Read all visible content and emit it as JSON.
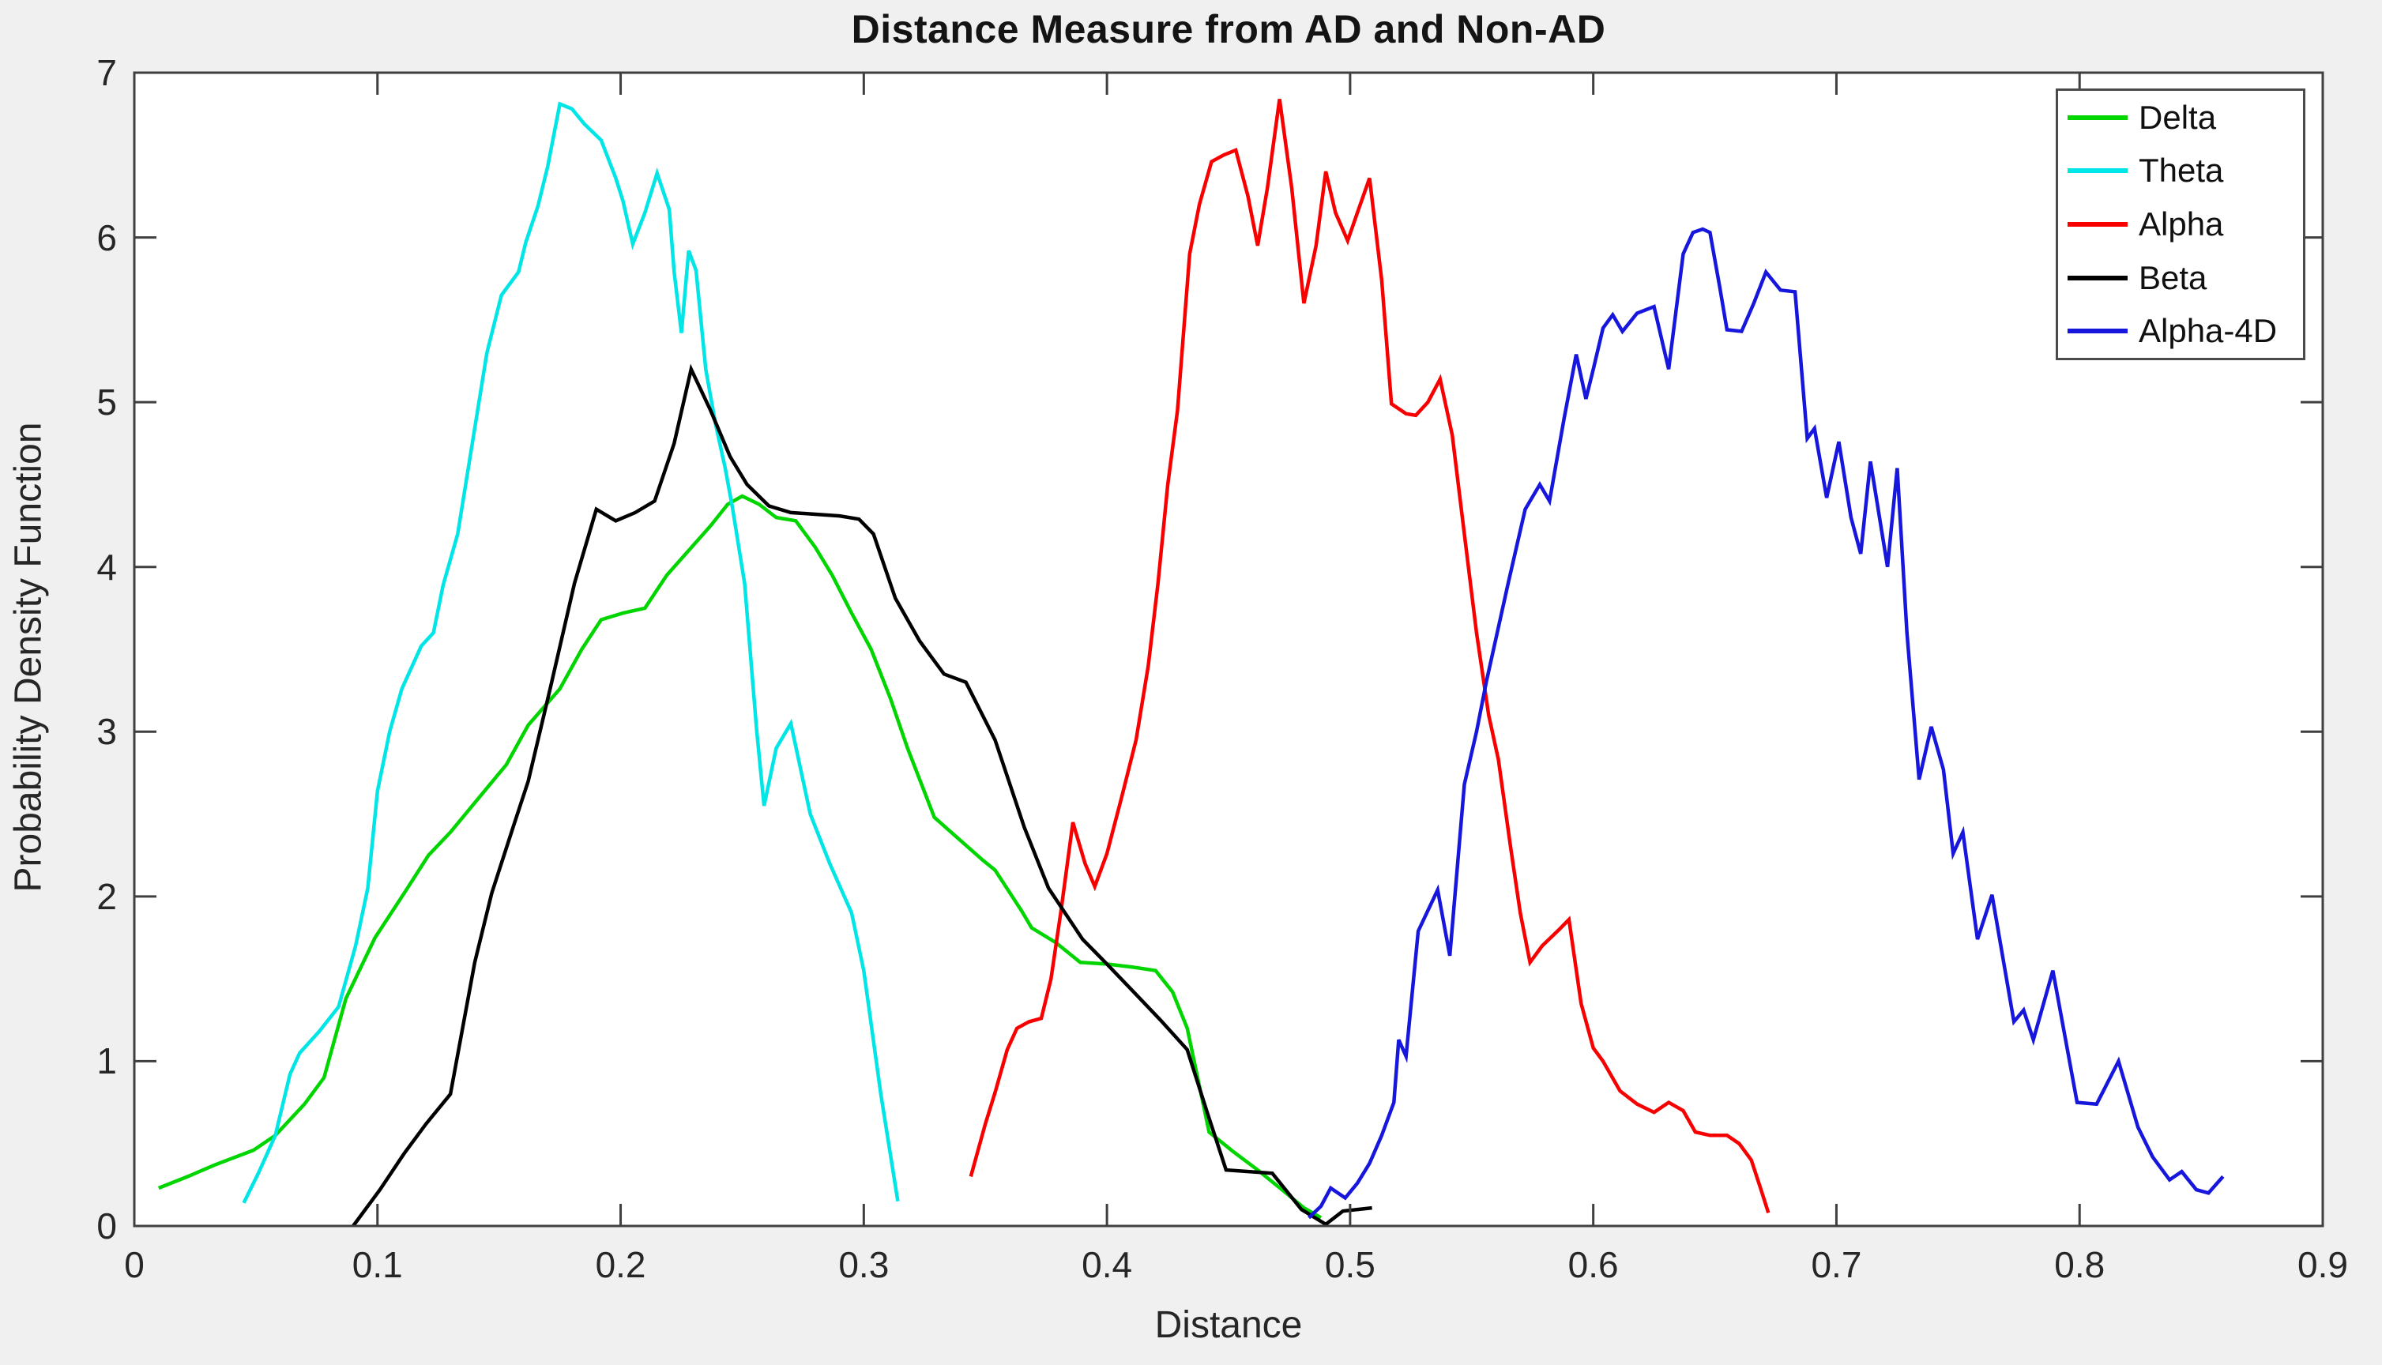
{
  "figure": {
    "background_color": "#f0f0f0",
    "plot_background_color": "#ffffff",
    "axis_color": "#3f3f3f",
    "tick_label_color": "#262626"
  },
  "chart_data": {
    "type": "line",
    "title": "Distance Measure from AD and Non-AD",
    "xlabel": "Distance",
    "ylabel": "Probability Density Function",
    "xlim": [
      0,
      0.9
    ],
    "ylim": [
      0,
      7
    ],
    "grid": false,
    "legend_position": "top-right",
    "xticks": {
      "values": [
        0,
        0.1,
        0.2,
        0.3,
        0.4,
        0.5,
        0.6,
        0.7,
        0.8,
        0.9
      ],
      "labels": [
        "0",
        "0.1",
        "0.2",
        "0.3",
        "0.4",
        "0.5",
        "0.6",
        "0.7",
        "0.8",
        "0.9"
      ]
    },
    "yticks": {
      "values": [
        0,
        1,
        2,
        3,
        4,
        5,
        6,
        7
      ],
      "labels": [
        "0",
        "1",
        "2",
        "3",
        "4",
        "5",
        "6",
        "7"
      ]
    },
    "series": [
      {
        "name": "Delta",
        "color": "#00d500",
        "points": [
          [
            0.01,
            0.23
          ],
          [
            0.022,
            0.3
          ],
          [
            0.033,
            0.37
          ],
          [
            0.049,
            0.46
          ],
          [
            0.058,
            0.55
          ],
          [
            0.07,
            0.74
          ],
          [
            0.078,
            0.9
          ],
          [
            0.087,
            1.38
          ],
          [
            0.099,
            1.75
          ],
          [
            0.111,
            2.02
          ],
          [
            0.121,
            2.25
          ],
          [
            0.13,
            2.39
          ],
          [
            0.144,
            2.64
          ],
          [
            0.153,
            2.8
          ],
          [
            0.162,
            3.04
          ],
          [
            0.175,
            3.26
          ],
          [
            0.184,
            3.5
          ],
          [
            0.192,
            3.68
          ],
          [
            0.201,
            3.72
          ],
          [
            0.21,
            3.75
          ],
          [
            0.219,
            3.95
          ],
          [
            0.228,
            4.1
          ],
          [
            0.237,
            4.25
          ],
          [
            0.244,
            4.38
          ],
          [
            0.25,
            4.43
          ],
          [
            0.257,
            4.38
          ],
          [
            0.264,
            4.3
          ],
          [
            0.272,
            4.28
          ],
          [
            0.28,
            4.12
          ],
          [
            0.287,
            3.95
          ],
          [
            0.295,
            3.72
          ],
          [
            0.303,
            3.5
          ],
          [
            0.311,
            3.2
          ],
          [
            0.318,
            2.9
          ],
          [
            0.329,
            2.48
          ],
          [
            0.339,
            2.35
          ],
          [
            0.349,
            2.22
          ],
          [
            0.354,
            2.16
          ],
          [
            0.365,
            1.91
          ],
          [
            0.369,
            1.81
          ],
          [
            0.379,
            1.72
          ],
          [
            0.389,
            1.6
          ],
          [
            0.4,
            1.59
          ],
          [
            0.411,
            1.57
          ],
          [
            0.42,
            1.55
          ],
          [
            0.427,
            1.42
          ],
          [
            0.433,
            1.2
          ],
          [
            0.438,
            0.85
          ],
          [
            0.442,
            0.57
          ],
          [
            0.452,
            0.45
          ],
          [
            0.462,
            0.34
          ],
          [
            0.472,
            0.22
          ],
          [
            0.481,
            0.11
          ],
          [
            0.488,
            0.05
          ]
        ]
      },
      {
        "name": "Theta",
        "color": "#00e5e5",
        "points": [
          [
            0.045,
            0.14
          ],
          [
            0.051,
            0.32
          ],
          [
            0.058,
            0.55
          ],
          [
            0.064,
            0.92
          ],
          [
            0.068,
            1.05
          ],
          [
            0.076,
            1.18
          ],
          [
            0.084,
            1.33
          ],
          [
            0.091,
            1.7
          ],
          [
            0.096,
            2.05
          ],
          [
            0.1,
            2.64
          ],
          [
            0.105,
            3.0
          ],
          [
            0.11,
            3.26
          ],
          [
            0.118,
            3.52
          ],
          [
            0.123,
            3.6
          ],
          [
            0.127,
            3.89
          ],
          [
            0.133,
            4.2
          ],
          [
            0.139,
            4.75
          ],
          [
            0.145,
            5.3
          ],
          [
            0.151,
            5.65
          ],
          [
            0.158,
            5.79
          ],
          [
            0.161,
            5.97
          ],
          [
            0.166,
            6.19
          ],
          [
            0.17,
            6.43
          ],
          [
            0.175,
            6.81
          ],
          [
            0.18,
            6.78
          ],
          [
            0.185,
            6.69
          ],
          [
            0.192,
            6.59
          ],
          [
            0.198,
            6.36
          ],
          [
            0.201,
            6.22
          ],
          [
            0.205,
            5.96
          ],
          [
            0.21,
            6.15
          ],
          [
            0.215,
            6.39
          ],
          [
            0.22,
            6.17
          ],
          [
            0.222,
            5.79
          ],
          [
            0.225,
            5.42
          ],
          [
            0.228,
            5.92
          ],
          [
            0.231,
            5.8
          ],
          [
            0.235,
            5.2
          ],
          [
            0.239,
            4.87
          ],
          [
            0.243,
            4.6
          ],
          [
            0.246,
            4.36
          ],
          [
            0.251,
            3.9
          ],
          [
            0.256,
            3.0
          ],
          [
            0.259,
            2.55
          ],
          [
            0.264,
            2.9
          ],
          [
            0.27,
            3.05
          ],
          [
            0.278,
            2.5
          ],
          [
            0.286,
            2.2
          ],
          [
            0.295,
            1.9
          ],
          [
            0.3,
            1.55
          ],
          [
            0.307,
            0.8
          ],
          [
            0.314,
            0.15
          ]
        ]
      },
      {
        "name": "Alpha",
        "color": "#f80000",
        "points": [
          [
            0.344,
            0.3
          ],
          [
            0.35,
            0.62
          ],
          [
            0.354,
            0.81
          ],
          [
            0.359,
            1.07
          ],
          [
            0.363,
            1.2
          ],
          [
            0.368,
            1.24
          ],
          [
            0.373,
            1.26
          ],
          [
            0.377,
            1.5
          ],
          [
            0.381,
            1.9
          ],
          [
            0.386,
            2.45
          ],
          [
            0.391,
            2.2
          ],
          [
            0.395,
            2.06
          ],
          [
            0.4,
            2.26
          ],
          [
            0.406,
            2.6
          ],
          [
            0.412,
            2.95
          ],
          [
            0.417,
            3.4
          ],
          [
            0.421,
            3.9
          ],
          [
            0.425,
            4.5
          ],
          [
            0.429,
            4.95
          ],
          [
            0.434,
            5.9
          ],
          [
            0.438,
            6.2
          ],
          [
            0.443,
            6.46
          ],
          [
            0.448,
            6.5
          ],
          [
            0.453,
            6.53
          ],
          [
            0.458,
            6.25
          ],
          [
            0.462,
            5.95
          ],
          [
            0.466,
            6.3
          ],
          [
            0.471,
            6.84
          ],
          [
            0.476,
            6.3
          ],
          [
            0.481,
            5.6
          ],
          [
            0.486,
            5.95
          ],
          [
            0.49,
            6.4
          ],
          [
            0.494,
            6.15
          ],
          [
            0.499,
            5.98
          ],
          [
            0.503,
            6.15
          ],
          [
            0.508,
            6.36
          ],
          [
            0.513,
            5.74
          ],
          [
            0.517,
            4.99
          ],
          [
            0.523,
            4.93
          ],
          [
            0.527,
            4.92
          ],
          [
            0.532,
            5.0
          ],
          [
            0.537,
            5.14
          ],
          [
            0.542,
            4.8
          ],
          [
            0.547,
            4.2
          ],
          [
            0.552,
            3.6
          ],
          [
            0.557,
            3.1
          ],
          [
            0.561,
            2.83
          ],
          [
            0.566,
            2.3
          ],
          [
            0.57,
            1.9
          ],
          [
            0.574,
            1.6
          ],
          [
            0.579,
            1.7
          ],
          [
            0.586,
            1.8
          ],
          [
            0.59,
            1.86
          ],
          [
            0.595,
            1.35
          ],
          [
            0.6,
            1.08
          ],
          [
            0.604,
            1.0
          ],
          [
            0.611,
            0.82
          ],
          [
            0.618,
            0.74
          ],
          [
            0.625,
            0.69
          ],
          [
            0.631,
            0.75
          ],
          [
            0.637,
            0.7
          ],
          [
            0.642,
            0.57
          ],
          [
            0.648,
            0.55
          ],
          [
            0.655,
            0.55
          ],
          [
            0.66,
            0.5
          ],
          [
            0.665,
            0.4
          ],
          [
            0.669,
            0.22
          ],
          [
            0.672,
            0.08
          ]
        ]
      },
      {
        "name": "Beta",
        "color": "#000000",
        "points": [
          [
            0.09,
            0.0
          ],
          [
            0.101,
            0.22
          ],
          [
            0.111,
            0.44
          ],
          [
            0.12,
            0.62
          ],
          [
            0.13,
            0.8
          ],
          [
            0.14,
            1.6
          ],
          [
            0.147,
            2.02
          ],
          [
            0.156,
            2.43
          ],
          [
            0.162,
            2.7
          ],
          [
            0.171,
            3.26
          ],
          [
            0.181,
            3.9
          ],
          [
            0.19,
            4.35
          ],
          [
            0.198,
            4.28
          ],
          [
            0.206,
            4.33
          ],
          [
            0.214,
            4.4
          ],
          [
            0.222,
            4.75
          ],
          [
            0.229,
            5.2
          ],
          [
            0.237,
            4.95
          ],
          [
            0.245,
            4.67
          ],
          [
            0.252,
            4.5
          ],
          [
            0.261,
            4.37
          ],
          [
            0.27,
            4.33
          ],
          [
            0.28,
            4.32
          ],
          [
            0.29,
            4.31
          ],
          [
            0.298,
            4.29
          ],
          [
            0.304,
            4.2
          ],
          [
            0.313,
            3.81
          ],
          [
            0.323,
            3.55
          ],
          [
            0.333,
            3.35
          ],
          [
            0.342,
            3.3
          ],
          [
            0.354,
            2.95
          ],
          [
            0.366,
            2.42
          ],
          [
            0.376,
            2.05
          ],
          [
            0.39,
            1.74
          ],
          [
            0.4,
            1.59
          ],
          [
            0.411,
            1.42
          ],
          [
            0.422,
            1.25
          ],
          [
            0.433,
            1.07
          ],
          [
            0.441,
            0.7
          ],
          [
            0.449,
            0.34
          ],
          [
            0.468,
            0.32
          ],
          [
            0.48,
            0.1
          ],
          [
            0.49,
            0.01
          ],
          [
            0.497,
            0.09
          ],
          [
            0.509,
            0.11
          ]
        ]
      },
      {
        "name": "Alpha-4D",
        "color": "#1616dd",
        "points": [
          [
            0.483,
            0.05
          ],
          [
            0.488,
            0.12
          ],
          [
            0.492,
            0.23
          ],
          [
            0.498,
            0.17
          ],
          [
            0.503,
            0.26
          ],
          [
            0.508,
            0.38
          ],
          [
            0.513,
            0.55
          ],
          [
            0.518,
            0.75
          ],
          [
            0.52,
            1.13
          ],
          [
            0.523,
            1.03
          ],
          [
            0.528,
            1.79
          ],
          [
            0.536,
            2.04
          ],
          [
            0.541,
            1.64
          ],
          [
            0.547,
            2.68
          ],
          [
            0.552,
            3.0
          ],
          [
            0.556,
            3.3
          ],
          [
            0.565,
            3.9
          ],
          [
            0.572,
            4.35
          ],
          [
            0.578,
            4.5
          ],
          [
            0.582,
            4.4
          ],
          [
            0.588,
            4.9
          ],
          [
            0.593,
            5.29
          ],
          [
            0.597,
            5.02
          ],
          [
            0.6,
            5.2
          ],
          [
            0.604,
            5.45
          ],
          [
            0.608,
            5.53
          ],
          [
            0.612,
            5.43
          ],
          [
            0.618,
            5.54
          ],
          [
            0.625,
            5.58
          ],
          [
            0.631,
            5.2
          ],
          [
            0.637,
            5.9
          ],
          [
            0.641,
            6.03
          ],
          [
            0.645,
            6.05
          ],
          [
            0.648,
            6.03
          ],
          [
            0.652,
            5.7
          ],
          [
            0.655,
            5.44
          ],
          [
            0.661,
            5.43
          ],
          [
            0.666,
            5.6
          ],
          [
            0.671,
            5.79
          ],
          [
            0.677,
            5.68
          ],
          [
            0.683,
            5.67
          ],
          [
            0.688,
            4.78
          ],
          [
            0.691,
            4.84
          ],
          [
            0.696,
            4.42
          ],
          [
            0.701,
            4.76
          ],
          [
            0.706,
            4.3
          ],
          [
            0.71,
            4.08
          ],
          [
            0.714,
            4.64
          ],
          [
            0.721,
            4.0
          ],
          [
            0.725,
            4.6
          ],
          [
            0.729,
            3.6
          ],
          [
            0.734,
            2.71
          ],
          [
            0.739,
            3.03
          ],
          [
            0.744,
            2.77
          ],
          [
            0.748,
            2.26
          ],
          [
            0.752,
            2.39
          ],
          [
            0.758,
            1.74
          ],
          [
            0.764,
            2.01
          ],
          [
            0.773,
            1.24
          ],
          [
            0.777,
            1.31
          ],
          [
            0.781,
            1.13
          ],
          [
            0.789,
            1.55
          ],
          [
            0.799,
            0.75
          ],
          [
            0.807,
            0.74
          ],
          [
            0.816,
            1.0
          ],
          [
            0.824,
            0.6
          ],
          [
            0.83,
            0.42
          ],
          [
            0.837,
            0.28
          ],
          [
            0.842,
            0.33
          ],
          [
            0.848,
            0.22
          ],
          [
            0.853,
            0.2
          ],
          [
            0.859,
            0.3
          ]
        ]
      }
    ]
  }
}
